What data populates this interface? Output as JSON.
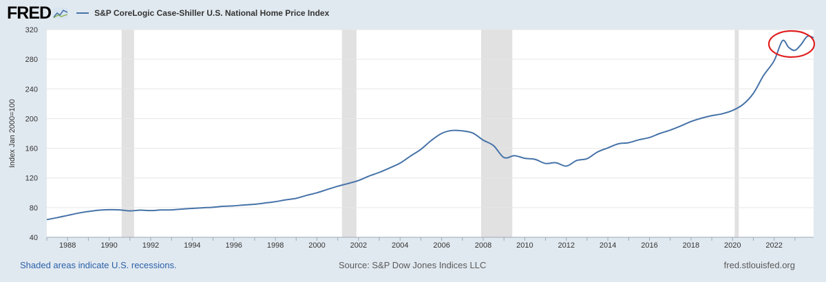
{
  "header": {
    "logo_text": "FRED",
    "series_title": "S&P CoreLogic Case-Shiller U.S. National Home Price Index",
    "series_color": "#4572a7"
  },
  "chart_data": {
    "type": "line",
    "title": "S&P CoreLogic Case-Shiller U.S. National Home Price Index",
    "ylabel": "Index Jan 2000=100",
    "xlabel": "",
    "xlim": [
      1987.0,
      2023.9
    ],
    "ylim": [
      40,
      320
    ],
    "y_ticks": [
      40,
      80,
      120,
      160,
      200,
      240,
      280,
      320
    ],
    "x_ticks": [
      1988,
      1990,
      1992,
      1994,
      1996,
      1998,
      2000,
      2002,
      2004,
      2006,
      2008,
      2010,
      2012,
      2014,
      2016,
      2018,
      2020,
      2022
    ],
    "recessions": [
      [
        1990.6,
        1991.2
      ],
      [
        2001.2,
        2001.9
      ],
      [
        2007.9,
        2009.4
      ],
      [
        2020.1,
        2020.3
      ]
    ],
    "series": [
      {
        "name": "S&P CoreLogic Case-Shiller U.S. National Home Price Index",
        "color": "#4572a7",
        "x": [
          1987.0,
          1987.5,
          1988.0,
          1988.5,
          1989.0,
          1989.5,
          1990.0,
          1990.5,
          1991.0,
          1991.5,
          1992.0,
          1992.5,
          1993.0,
          1993.5,
          1994.0,
          1994.5,
          1995.0,
          1995.5,
          1996.0,
          1996.5,
          1997.0,
          1997.5,
          1998.0,
          1998.5,
          1999.0,
          1999.5,
          2000.0,
          2000.5,
          2001.0,
          2001.5,
          2002.0,
          2002.5,
          2003.0,
          2003.5,
          2004.0,
          2004.5,
          2005.0,
          2005.5,
          2006.0,
          2006.5,
          2007.0,
          2007.5,
          2008.0,
          2008.5,
          2009.0,
          2009.5,
          2010.0,
          2010.5,
          2011.0,
          2011.5,
          2012.0,
          2012.5,
          2013.0,
          2013.5,
          2014.0,
          2014.5,
          2015.0,
          2015.5,
          2016.0,
          2016.5,
          2017.0,
          2017.5,
          2018.0,
          2018.5,
          2019.0,
          2019.5,
          2020.0,
          2020.5,
          2021.0,
          2021.5,
          2022.0,
          2022.4,
          2022.7,
          2023.0,
          2023.3,
          2023.6,
          2023.9
        ],
        "values": [
          63.8,
          66.5,
          69.5,
          72.5,
          74.8,
          76.5,
          77.2,
          77.0,
          75.6,
          76.6,
          76.0,
          76.8,
          77.0,
          78.0,
          79.0,
          79.8,
          80.5,
          81.8,
          82.4,
          83.6,
          84.5,
          86.2,
          88.0,
          90.5,
          92.5,
          96.5,
          100.0,
          104.5,
          108.8,
          112.5,
          116.5,
          122.5,
          127.5,
          133.5,
          140.0,
          149.5,
          158.5,
          170.5,
          180.0,
          184.0,
          183.5,
          180.5,
          171.0,
          163.5,
          147.5,
          150.0,
          146.5,
          145.0,
          139.5,
          140.5,
          136.0,
          143.5,
          146.0,
          155.0,
          160.5,
          166.0,
          167.5,
          171.5,
          174.5,
          180.0,
          184.5,
          190.0,
          196.0,
          200.5,
          204.0,
          206.5,
          211.0,
          219.0,
          234.0,
          258.5,
          278.0,
          305.0,
          296.0,
          292.0,
          300.0,
          311.0,
          309.0
        ]
      }
    ]
  },
  "footer": {
    "recession_note": "Shaded areas indicate U.S. recessions.",
    "source": "Source: S&P Dow Jones Indices LLC",
    "site": "fred.stlouisfed.org"
  }
}
